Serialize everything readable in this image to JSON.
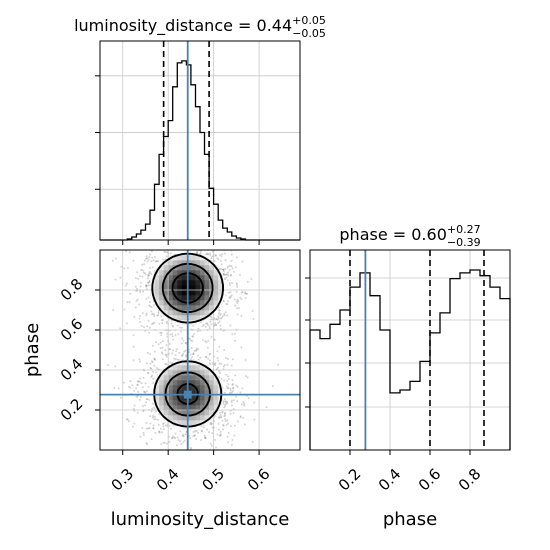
{
  "chart_data": {
    "type": "corner",
    "parameters": [
      "luminosity_distance",
      "phase"
    ],
    "truths": {
      "luminosity_distance": 0.443,
      "phase": 0.277
    },
    "panels": [
      {
        "id": "hist-luminosity-distance",
        "type": "histogram",
        "parameter": "luminosity_distance",
        "title": {
          "main": "luminosity_distance = 0.44",
          "upper": "+0.05",
          "lower": "−0.05"
        },
        "xlim": [
          0.25,
          0.69
        ],
        "bin_edges": [
          0.25,
          0.26,
          0.27,
          0.28,
          0.29,
          0.3,
          0.31,
          0.32,
          0.33,
          0.34,
          0.35,
          0.36,
          0.37,
          0.38,
          0.39,
          0.4,
          0.41,
          0.42,
          0.43,
          0.44,
          0.45,
          0.46,
          0.47,
          0.48,
          0.49,
          0.5,
          0.51,
          0.52,
          0.53,
          0.54,
          0.55,
          0.56,
          0.57,
          0.58,
          0.59,
          0.6,
          0.61,
          0.62,
          0.63,
          0.64,
          0.65,
          0.66,
          0.67,
          0.68,
          0.69
        ],
        "counts": [
          0,
          0,
          0,
          0,
          0,
          0,
          0.5,
          1.5,
          3,
          5,
          8,
          15,
          28,
          43,
          52,
          60,
          77,
          89,
          90,
          88,
          78,
          67,
          54,
          43,
          26,
          18,
          10,
          6,
          4,
          2,
          1,
          0.5,
          0,
          0,
          0,
          0,
          0,
          0,
          0,
          0,
          0,
          0,
          0,
          0
        ],
        "ymax": 100,
        "quantiles": [
          0.39,
          0.49
        ],
        "median": 0.44,
        "xticks": [
          0.3,
          0.4,
          0.5,
          0.6
        ]
      },
      {
        "id": "hist-phase",
        "type": "histogram",
        "parameter": "phase",
        "title": {
          "main": "phase = 0.60",
          "upper": "+0.27",
          "lower": "−0.39"
        },
        "xlim": [
          0.0,
          1.0
        ],
        "bin_edges": [
          0.0,
          0.05,
          0.1,
          0.15,
          0.2,
          0.25,
          0.3,
          0.35,
          0.4,
          0.45,
          0.5,
          0.55,
          0.6,
          0.65,
          0.7,
          0.75,
          0.8,
          0.85,
          0.9,
          0.95,
          1.0
        ],
        "counts": [
          420,
          390,
          440,
          490,
          570,
          620,
          540,
          420,
          200,
          210,
          240,
          310,
          410,
          480,
          600,
          620,
          630,
          610,
          570,
          530
        ],
        "ymax": 700,
        "quantiles": [
          0.2,
          0.6,
          0.87
        ],
        "xticks": [
          0.2,
          0.4,
          0.6,
          0.8
        ],
        "xlabel": "phase"
      },
      {
        "id": "joint-luminosity-distance-phase",
        "type": "2d-density",
        "x_parameter": "luminosity_distance",
        "y_parameter": "phase",
        "xlim": [
          0.25,
          0.69
        ],
        "ylim": [
          0.0,
          1.0
        ],
        "xticks": [
          0.3,
          0.4,
          0.5,
          0.6
        ],
        "yticks": [
          0.2,
          0.4,
          0.6,
          0.8
        ],
        "xlabel": "luminosity_distance",
        "ylabel": "phase",
        "modes": [
          {
            "x": 0.443,
            "y": 0.81,
            "sx": 0.05,
            "sy": 0.11,
            "weight": 0.53
          },
          {
            "x": 0.443,
            "y": 0.28,
            "sx": 0.05,
            "sy": 0.11,
            "weight": 0.47
          }
        ],
        "contour_levels": [
          "39%",
          "86%",
          "99%"
        ]
      }
    ],
    "colors": {
      "truth": "#4682b4",
      "hist_line": "#000000",
      "quantile_line": "#000000",
      "grid": "#c8c8c8",
      "frame": "#000000",
      "scatter": "#7a7a7a"
    },
    "grid": true
  }
}
